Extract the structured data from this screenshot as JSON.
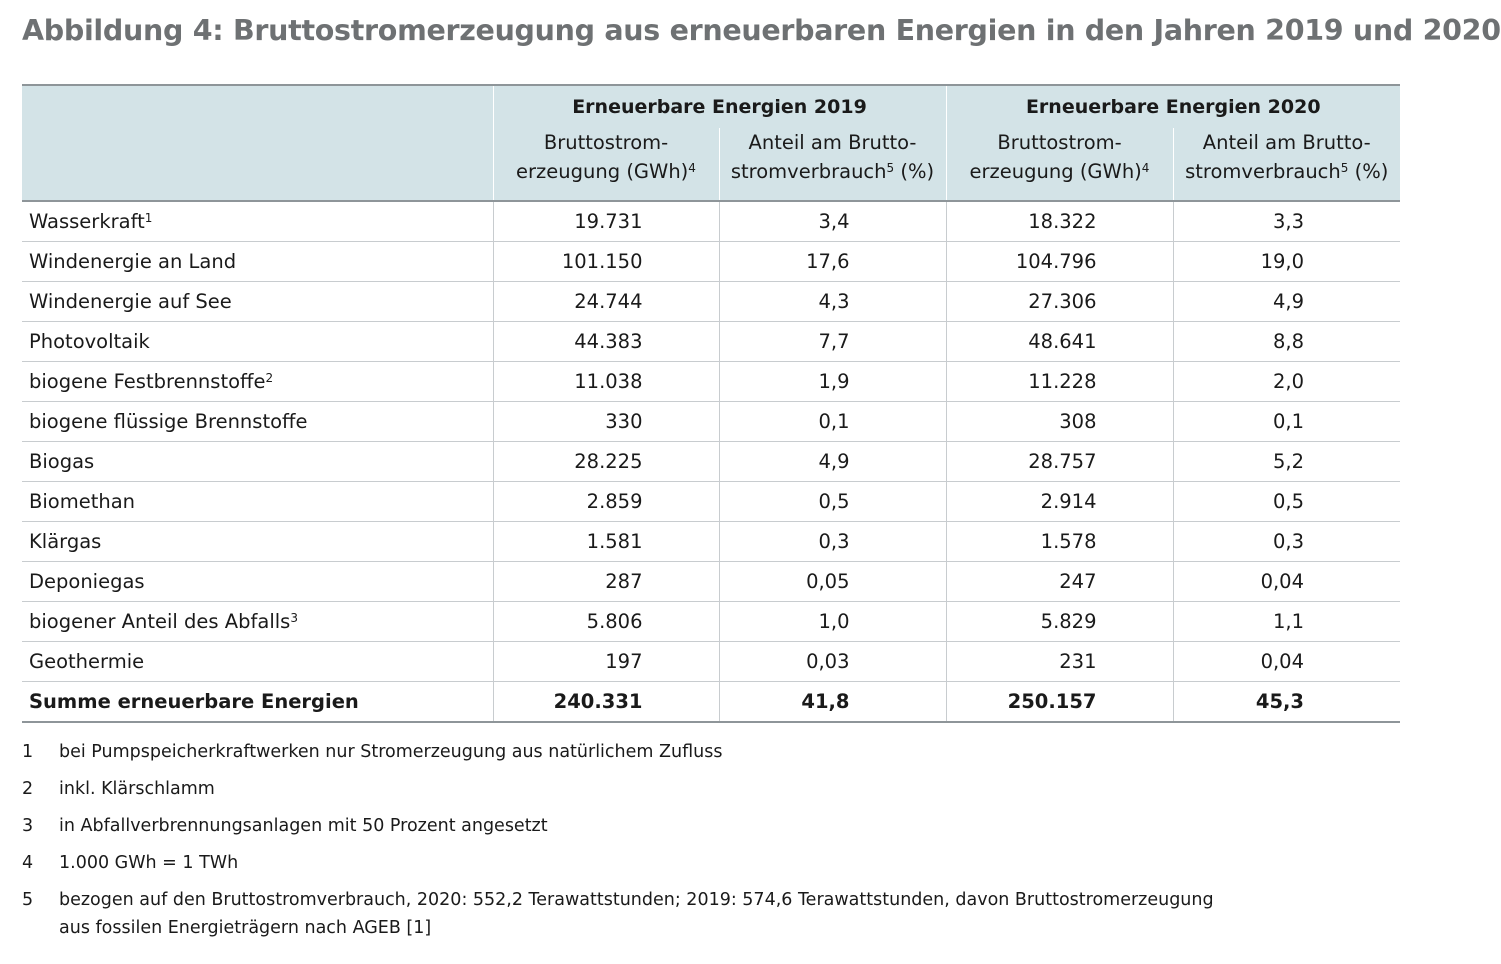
{
  "title": "Abbildung 4: Bruttostromerzeugung aus erneuerbaren Energien in den Jahren 2019 und 2020",
  "table": {
    "groups": [
      "Erneuerbare Energien 2019",
      "Erneuerbare Energien 2020"
    ],
    "subheaders": {
      "gen_line1": "Bruttostrom-",
      "gen_line2": "erzeugung (GWh)",
      "gen_sup": "4",
      "share_line1": "Anteil am Brutto-",
      "share_line2a": "stromverbrauch",
      "share_sup": "5",
      "share_line2b": " (%)"
    },
    "rows": [
      {
        "label": "Wasserkraft",
        "sup": "1",
        "v2019_gwh": "19.731",
        "v2019_pct": "3,4",
        "v2020_gwh": "18.322",
        "v2020_pct": "3,3"
      },
      {
        "label": "Windenergie an Land",
        "sup": "",
        "v2019_gwh": "101.150",
        "v2019_pct": "17,6",
        "v2020_gwh": "104.796",
        "v2020_pct": "19,0"
      },
      {
        "label": "Windenergie auf See",
        "sup": "",
        "v2019_gwh": "24.744",
        "v2019_pct": "4,3",
        "v2020_gwh": "27.306",
        "v2020_pct": "4,9"
      },
      {
        "label": "Photovoltaik",
        "sup": "",
        "v2019_gwh": "44.383",
        "v2019_pct": "7,7",
        "v2020_gwh": "48.641",
        "v2020_pct": "8,8"
      },
      {
        "label": "biogene Festbrennstoffe",
        "sup": "2",
        "v2019_gwh": "11.038",
        "v2019_pct": "1,9",
        "v2020_gwh": "11.228",
        "v2020_pct": "2,0"
      },
      {
        "label": "biogene flüssige Brennstoffe",
        "sup": "",
        "v2019_gwh": "330",
        "v2019_pct": "0,1",
        "v2020_gwh": "308",
        "v2020_pct": "0,1"
      },
      {
        "label": "Biogas",
        "sup": "",
        "v2019_gwh": "28.225",
        "v2019_pct": "4,9",
        "v2020_gwh": "28.757",
        "v2020_pct": "5,2"
      },
      {
        "label": "Biomethan",
        "sup": "",
        "v2019_gwh": "2.859",
        "v2019_pct": "0,5",
        "v2020_gwh": "2.914",
        "v2020_pct": "0,5"
      },
      {
        "label": "Klärgas",
        "sup": "",
        "v2019_gwh": "1.581",
        "v2019_pct": "0,3",
        "v2020_gwh": "1.578",
        "v2020_pct": "0,3"
      },
      {
        "label": "Deponiegas",
        "sup": "",
        "v2019_gwh": "287",
        "v2019_pct": "0,05",
        "v2020_gwh": "247",
        "v2020_pct": "0,04"
      },
      {
        "label": "biogener Anteil des Abfalls",
        "sup": "3",
        "v2019_gwh": "5.806",
        "v2019_pct": "1,0",
        "v2020_gwh": "5.829",
        "v2020_pct": "1,1"
      },
      {
        "label": "Geothermie",
        "sup": "",
        "v2019_gwh": "197",
        "v2019_pct": "0,03",
        "v2020_gwh": "231",
        "v2020_pct": "0,04"
      }
    ],
    "total": {
      "label": "Summe erneuerbare Energien",
      "v2019_gwh": "240.331",
      "v2019_pct": "41,8",
      "v2020_gwh": "250.157",
      "v2020_pct": "45,3"
    }
  },
  "footnotes": [
    {
      "nr": "1",
      "text": "bei Pumpspeicherkraftwerken nur Stromerzeugung aus natürlichem Zufluss"
    },
    {
      "nr": "2",
      "text": "inkl. Klärschlamm"
    },
    {
      "nr": "3",
      "text": "in Abfallverbrennungsanlagen mit 50 Prozent angesetzt"
    },
    {
      "nr": "4",
      "text": "1.000 GWh = 1 TWh"
    },
    {
      "nr": "5",
      "text": "bezogen auf den Bruttostromverbrauch, 2020: 552,2 Terawattstunden; 2019: 574,6 Terawattstunden, davon Bruttostromerzeugung aus fossilen Energieträgern nach AGEB [1]"
    }
  ],
  "colors": {
    "title": "#6e7173",
    "header_bg": "#d3e3e7",
    "rule": "#8e9599",
    "row_divider": "#c8cccf"
  }
}
